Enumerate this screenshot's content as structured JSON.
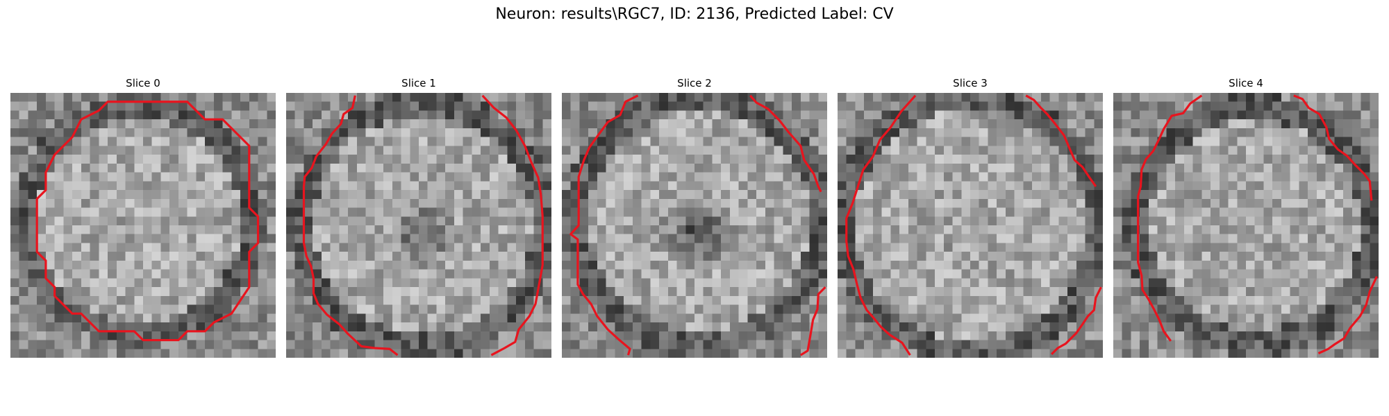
{
  "figure": {
    "title": "Neuron: results\\RGC7, ID: 2136, Predicted Label: CV"
  },
  "colors": {
    "contour": "#e8141e",
    "background": "#ffffff",
    "colormap": "gray"
  },
  "slices": [
    {
      "label": "Slice 0"
    },
    {
      "label": "Slice 1"
    },
    {
      "label": "Slice 2"
    },
    {
      "label": "Slice 3"
    },
    {
      "label": "Slice 4"
    }
  ]
}
